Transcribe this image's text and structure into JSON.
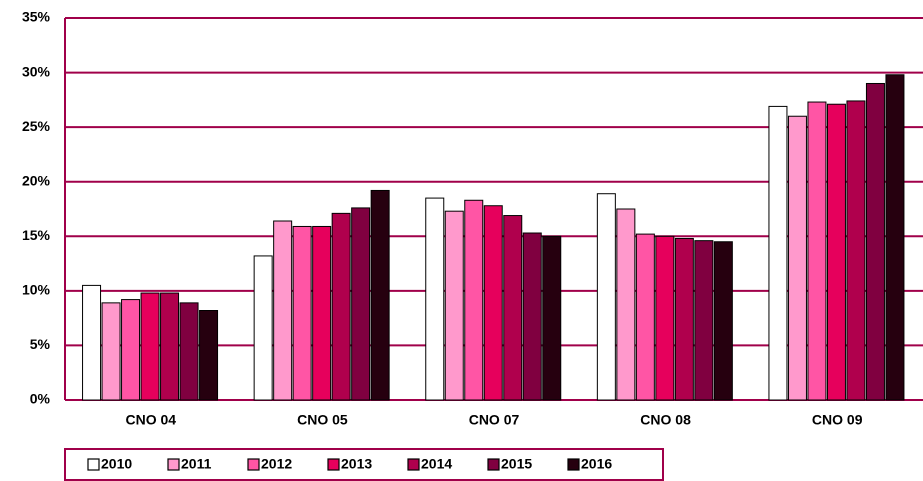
{
  "chart_data": {
    "type": "bar",
    "categories": [
      "CNO 04",
      "CNO 05",
      "CNO 07",
      "CNO 08",
      "CNO 09"
    ],
    "series": [
      {
        "name": "2010",
        "color": "#ffffff",
        "values": [
          10.5,
          13.2,
          18.5,
          18.9,
          26.9
        ]
      },
      {
        "name": "2011",
        "color": "#ff99cc",
        "values": [
          8.9,
          16.4,
          17.3,
          17.5,
          26.0
        ]
      },
      {
        "name": "2012",
        "color": "#ff55a5",
        "values": [
          9.2,
          15.9,
          18.3,
          15.2,
          27.3
        ]
      },
      {
        "name": "2013",
        "color": "#e6005c",
        "values": [
          9.8,
          15.9,
          17.8,
          15.0,
          27.1
        ]
      },
      {
        "name": "2014",
        "color": "#b0004d",
        "values": [
          9.8,
          17.1,
          16.9,
          14.8,
          27.4
        ]
      },
      {
        "name": "2015",
        "color": "#800040",
        "values": [
          8.9,
          17.6,
          15.3,
          14.6,
          29.0
        ]
      },
      {
        "name": "2016",
        "color": "#26000f",
        "values": [
          8.2,
          19.2,
          15.0,
          14.5,
          29.8
        ]
      }
    ],
    "ylim": [
      0,
      35
    ],
    "yticks": [
      {
        "value": 0,
        "label": "0%"
      },
      {
        "value": 5,
        "label": "5%"
      },
      {
        "value": 10,
        "label": "10%"
      },
      {
        "value": 15,
        "label": "15%"
      },
      {
        "value": 20,
        "label": "20%"
      },
      {
        "value": 25,
        "label": "25%"
      },
      {
        "value": 30,
        "label": "30%"
      },
      {
        "value": 35,
        "label": "35%"
      }
    ],
    "grid": true,
    "grid_color": "#a0004a",
    "legend": "bottom"
  }
}
